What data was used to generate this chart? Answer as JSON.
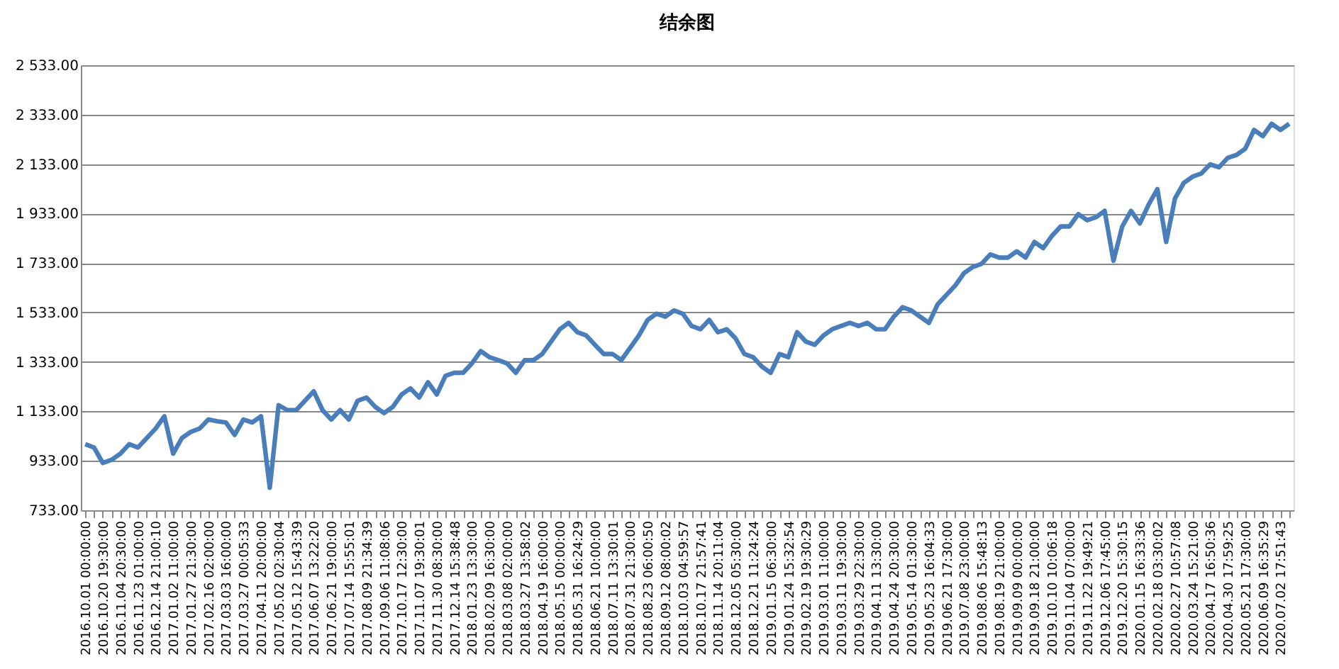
{
  "chart_data": {
    "type": "line",
    "title": "结余图",
    "categories": [
      "2016.10.01 00:00:00",
      null,
      "2016.10.20 19:30:00",
      null,
      "2016.11.04 20:30:00",
      null,
      "2016.11.23 01:00:00",
      null,
      "2016.12.14 21:00:10",
      null,
      "2017.01.02 11:00:00",
      null,
      "2017.01.27 21:30:00",
      null,
      "2017.02.16 02:00:00",
      null,
      "2017.03.03 16:00:00",
      null,
      "2017.03.27 00:05:33",
      null,
      "2017.04.11 20:00:00",
      null,
      "2017.05.02 02:30:04",
      null,
      "2017.05.12 15:43:39",
      null,
      "2017.06.07 13:22:20",
      null,
      "2017.06.21 19:00:00",
      null,
      "2017.07.14 15:55:01",
      null,
      "2017.08.09 21:34:39",
      null,
      "2017.09.06 11:08:06",
      null,
      "2017.10.17 12:30:00",
      null,
      "2017.11.07 19:30:01",
      null,
      "2017.11.30 08:30:00",
      null,
      "2017.12.14 15:38:48",
      null,
      "2018.01.23 13:30:00",
      null,
      "2018.02.09 16:30:00",
      null,
      "2018.03.08 02:00:00",
      null,
      "2018.03.27 13:58:02",
      null,
      "2018.04.19 16:00:00",
      null,
      "2018.05.15 00:00:00",
      null,
      "2018.05.31 16:24:29",
      null,
      "2018.06.21 10:00:00",
      null,
      "2018.07.11 13:30:01",
      null,
      "2018.07.31 21:30:00",
      null,
      "2018.08.23 06:00:50",
      null,
      "2018.09.12 08:00:02",
      null,
      "2018.10.03 04:59:57",
      null,
      "2018.10.17 21:57:41",
      null,
      "2018.11.14 20:11:04",
      null,
      "2018.12.05 05:30:00",
      null,
      "2018.12.21 11:24:24",
      null,
      "2019.01.15 06:30:00",
      null,
      "2019.01.24 15:32:54",
      null,
      "2019.02.19 19:30:29",
      null,
      "2019.03.01 11:00:00",
      null,
      "2019.03.11 19:30:00",
      null,
      "2019.03.29 22:30:00",
      null,
      "2019.04.11 13:30:00",
      null,
      "2019.04.24 20:30:00",
      null,
      "2019.05.14 01:30:00",
      null,
      "2019.05.23 16:04:33",
      null,
      "2019.06.21 17:30:00",
      null,
      "2019.07.08 23:00:00",
      null,
      "2019.08.06 15:48:13",
      null,
      "2019.08.19 21:00:00",
      null,
      "2019.09.09 00:00:00",
      null,
      "2019.09.18 21:00:00",
      null,
      "2019.10.10 10:06:18",
      null,
      "2019.11.04 07:00:00",
      null,
      "2019.11.22 19:49:21",
      null,
      "2019.12.06 17:45:00",
      null,
      "2019.12.20 15:30:15",
      null,
      "2020.01.15 16:33:36",
      null,
      "2020.02.18 03:30:02",
      null,
      "2020.02.27 10:57:08",
      null,
      "2020.03.24 15:21:00",
      null,
      "2020.04.17 16:50:36",
      null,
      "2020.04.30 17:59:25",
      null,
      "2020.05.21 17:30:00",
      null,
      "2020.06.09 16:35:29",
      null,
      "2020.07.02 17:51:43",
      null
    ],
    "series": [
      {
        "color": "#4a7ebb",
        "values": [
          1000,
          987,
          924,
          937,
          962,
          1000,
          987,
          1025,
          1063,
          1113,
          962,
          1025,
          1050,
          1063,
          1100,
          1093,
          1088,
          1038,
          1100,
          1088,
          1113,
          824,
          1158,
          1138,
          1138,
          1176,
          1214,
          1138,
          1100,
          1138,
          1100,
          1176,
          1189,
          1151,
          1126,
          1151,
          1201,
          1226,
          1189,
          1251,
          1201,
          1277,
          1289,
          1289,
          1327,
          1377,
          1352,
          1340,
          1327,
          1289,
          1340,
          1340,
          1365,
          1415,
          1465,
          1491,
          1453,
          1440,
          1402,
          1365,
          1365,
          1340,
          1390,
          1440,
          1503,
          1528,
          1516,
          1541,
          1528,
          1478,
          1465,
          1503,
          1453,
          1465,
          1428,
          1365,
          1352,
          1314,
          1289,
          1365,
          1352,
          1453,
          1415,
          1402,
          1440,
          1465,
          1478,
          1491,
          1478,
          1491,
          1465,
          1465,
          1516,
          1554,
          1541,
          1516,
          1491,
          1566,
          1604,
          1642,
          1692,
          1717,
          1730,
          1768,
          1755,
          1755,
          1780,
          1755,
          1818,
          1793,
          1843,
          1881,
          1881,
          1931,
          1906,
          1918,
          1944,
          1742,
          1881,
          1944,
          1893,
          1969,
          2032,
          1818,
          1994,
          2057,
          2082,
          2095,
          2132,
          2120,
          2158,
          2170,
          2195,
          2271,
          2246,
          2296,
          2271,
          2296
        ]
      }
    ],
    "ylim": [
      733,
      2533
    ],
    "yticks": [
      {
        "value": 733,
        "label": "733.00"
      },
      {
        "value": 933,
        "label": "933.00"
      },
      {
        "value": 1133,
        "label": "1 133.00"
      },
      {
        "value": 1333,
        "label": "1 333.00"
      },
      {
        "value": 1533,
        "label": "1 533.00"
      },
      {
        "value": 1733,
        "label": "1 733.00"
      },
      {
        "value": 1933,
        "label": "1 933.00"
      },
      {
        "value": 2133,
        "label": "2 133.00"
      },
      {
        "value": 2333,
        "label": "2 333.00"
      },
      {
        "value": 2533,
        "label": "2 533.00"
      }
    ],
    "grid": "y",
    "marker": "none",
    "line_style": "solid"
  }
}
